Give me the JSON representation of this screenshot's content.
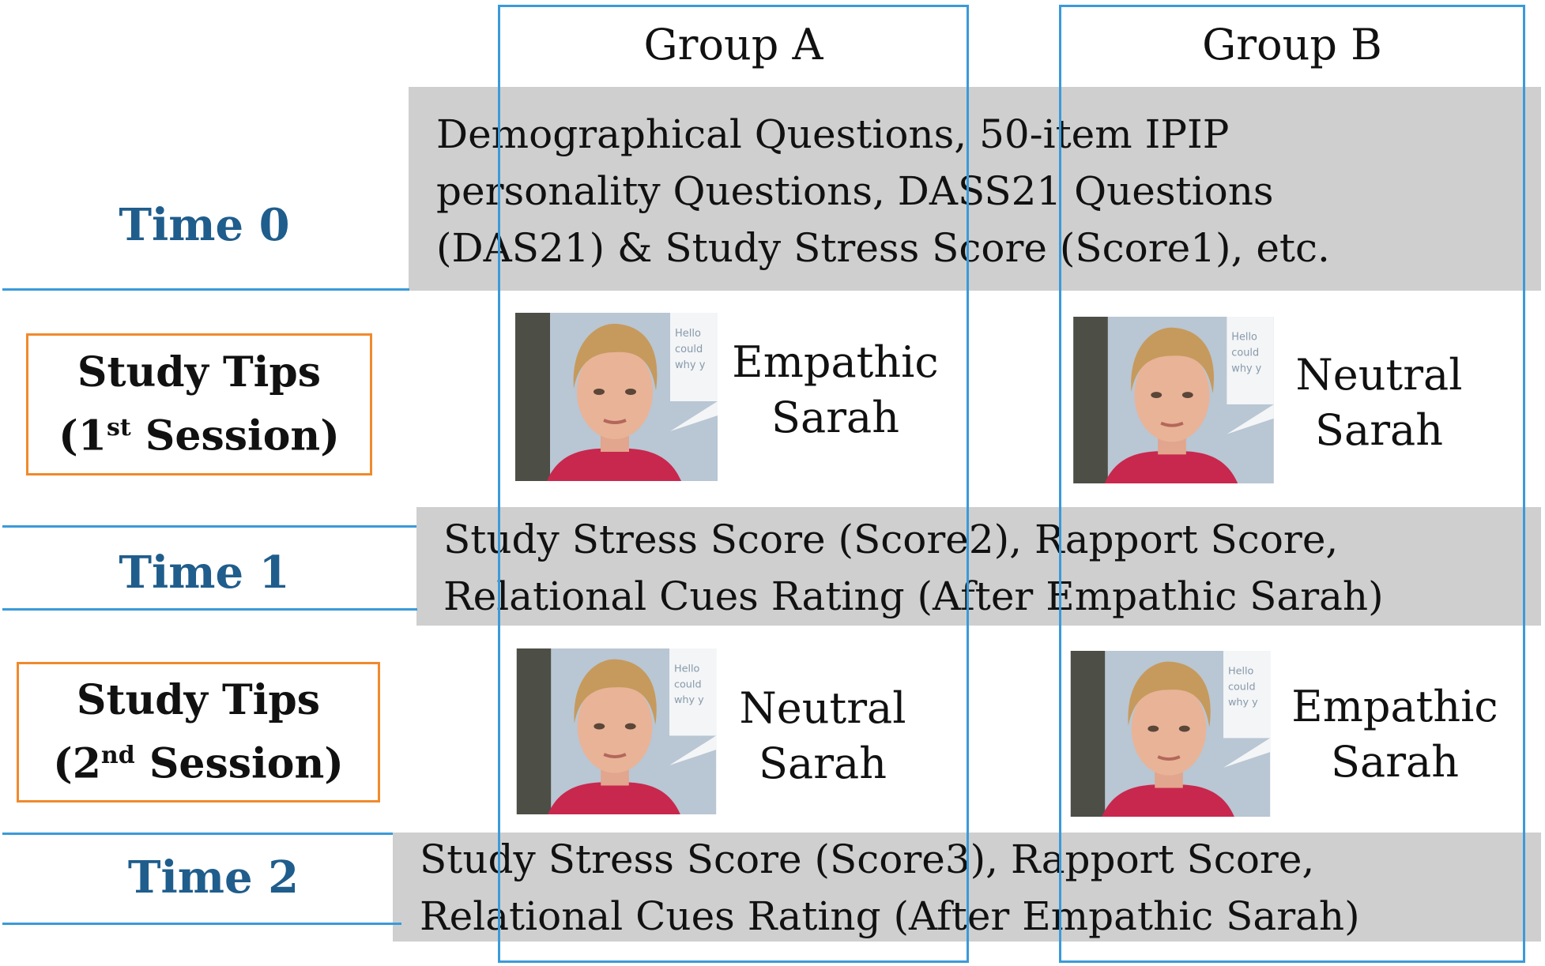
{
  "groups": {
    "a": "Group A",
    "b": "Group B"
  },
  "timeline": {
    "time0": "Time 0",
    "time1": "Time 1",
    "time2": "Time 2",
    "session1": {
      "line1": "Study Tips",
      "open": "(1",
      "ordinal": "st",
      "close": " Session)"
    },
    "session2": {
      "line1": "Study Tips",
      "open": "(2",
      "ordinal": "nd",
      "close": " Session)"
    }
  },
  "measures": {
    "time0": [
      "Demographical Questions, 50-item IPIP",
      "personality Questions, DASS21 Questions",
      "(DAS21) & Study Stress Score (Score1), etc."
    ],
    "time1": [
      "Study Stress Score (Score2), Rapport Score,",
      "Relational Cues Rating (After Empathic Sarah)"
    ],
    "time2": [
      "Study Stress Score (Score3), Rapport Score,",
      "Relational Cues Rating (After Empathic Sarah)"
    ]
  },
  "conditions": {
    "a1": [
      "Empathic",
      "Sarah"
    ],
    "b1": [
      "Neutral",
      "Sarah"
    ],
    "a2": [
      "Neutral",
      "Sarah"
    ],
    "b2": [
      "Empathic",
      "Sarah"
    ]
  },
  "avatar_bubble": [
    "Hello",
    "could",
    "why y"
  ],
  "colors": {
    "accent": "#3a9ad9",
    "time_text": "#1f5d8c",
    "tips_border": "#f08a2c",
    "band": "#cfcfcf"
  }
}
